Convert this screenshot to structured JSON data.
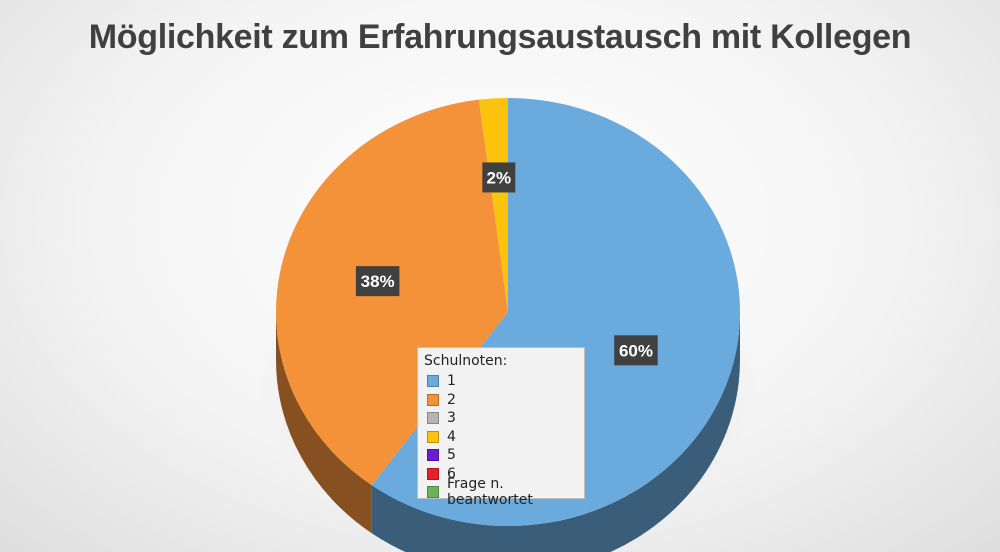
{
  "chart_data": {
    "type": "pie",
    "title": "Möglichkeit zum Erfahrungsaustausch mit Kollegen",
    "legend_title": "Schulnoten:",
    "legend_position": "bottom-center",
    "slices": [
      {
        "label": "1",
        "value": 60,
        "display": "60%",
        "color": "#6aaadc"
      },
      {
        "label": "2",
        "value": 38,
        "display": "38%",
        "color": "#f4923a"
      },
      {
        "label": "3",
        "value": 0,
        "display": "",
        "color": "#b4b4b4"
      },
      {
        "label": "4",
        "value": 2,
        "display": "2%",
        "color": "#fcc30c"
      },
      {
        "label": "5",
        "value": 0,
        "display": "",
        "color": "#6a1bd6"
      },
      {
        "label": "6",
        "value": 0,
        "display": "",
        "color": "#e8202a"
      },
      {
        "label": "Frage n. beantwortet",
        "value": 0,
        "display": "",
        "color": "#6db25a"
      }
    ]
  }
}
